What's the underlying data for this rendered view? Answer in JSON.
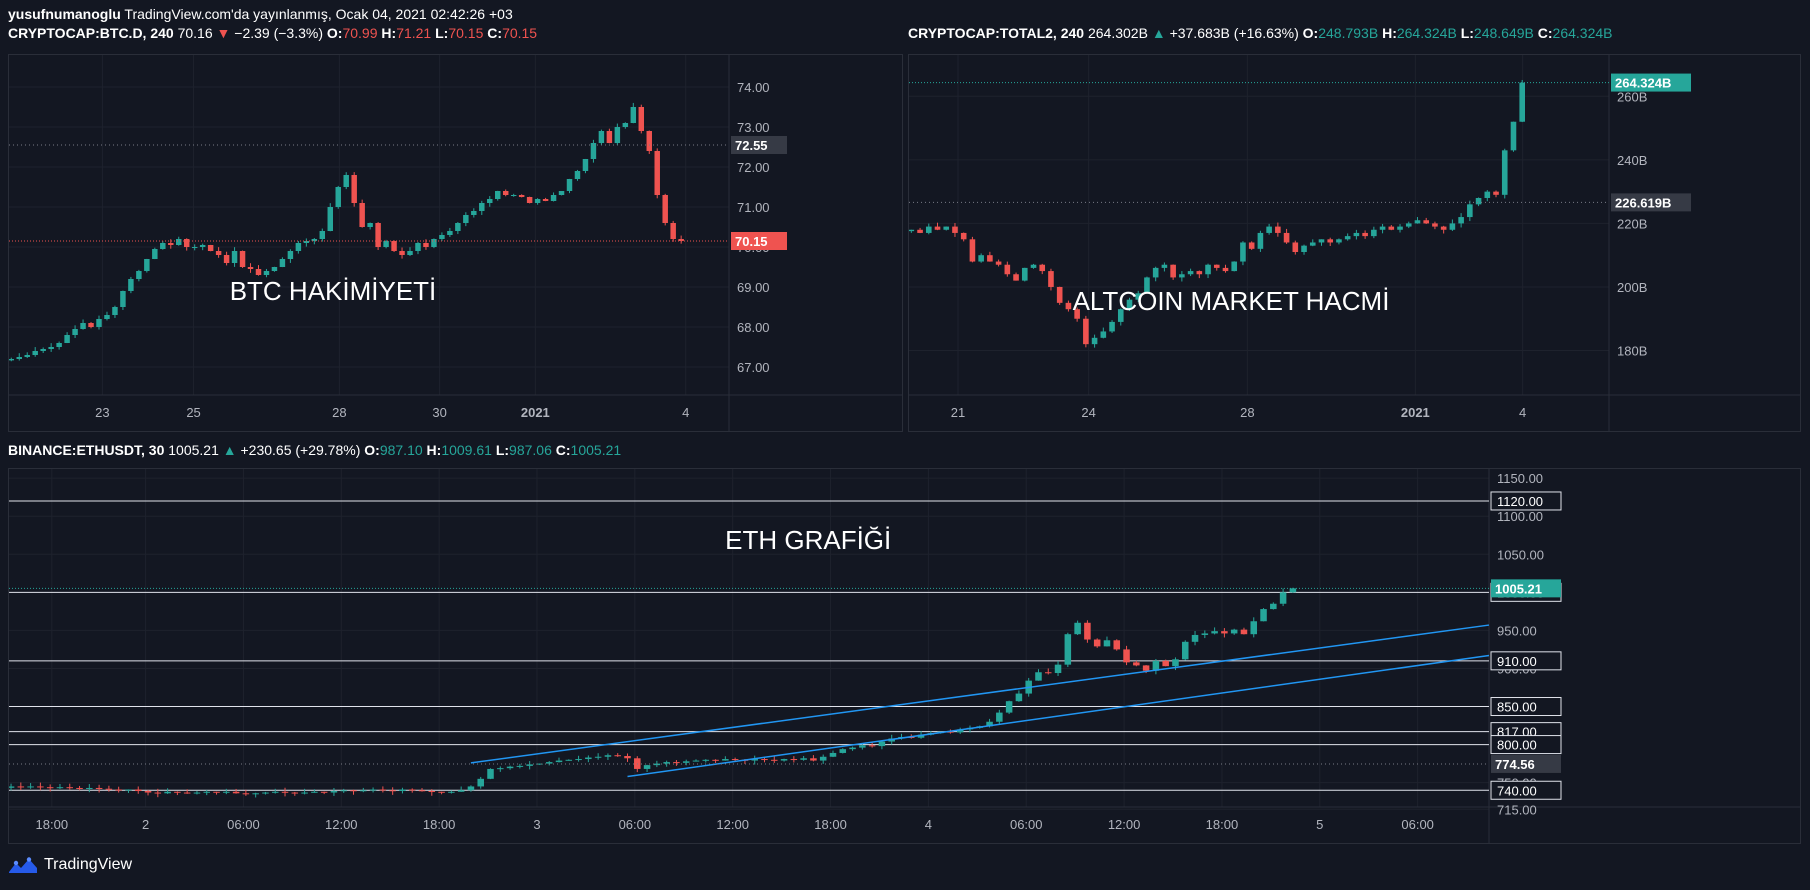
{
  "header": {
    "author": "yusufnumanoglu",
    "published": "TradingView.com'da yayınlanmış, Ocak 04, 2021 02:42:26 +03"
  },
  "colors": {
    "up": "#26a69a",
    "down": "#ef5350",
    "bg": "#131722",
    "grid": "#1e222d",
    "trend": "#2196f3"
  },
  "watermark": {
    "label": "TradingView",
    "icon": "tradingview-logo-icon"
  },
  "btc_legend": {
    "symbol": "CRYPTOCAP:BTC.D, 240",
    "last": "70.16",
    "arrow": "▼",
    "change": "−2.39 (−3.3%)",
    "o_label": "O:",
    "o": "70.99",
    "h_label": "H:",
    "h": "71.21",
    "l_label": "L:",
    "l": "70.15",
    "c_label": "C:",
    "c": "70.15"
  },
  "total_legend": {
    "symbol": "CRYPTOCAP:TOTAL2, 240",
    "last": "264.302B",
    "arrow": "▲",
    "change": "+37.683B (+16.63%)",
    "o_label": "O:",
    "o": "248.793B",
    "h_label": "H:",
    "h": "264.324B",
    "l_label": "L:",
    "l": "248.649B",
    "c_label": "C:",
    "c": "264.324B"
  },
  "eth_legend": {
    "symbol": "BINANCE:ETHUSDT, 30",
    "last": "1005.21",
    "arrow": "▲",
    "change": "+230.65 (+29.78%)",
    "o_label": "O:",
    "o": "987.10",
    "h_label": "H:",
    "h": "1009.61",
    "l_label": "L:",
    "l": "987.06",
    "c_label": "C:",
    "c": "1005.21"
  },
  "chart_data": [
    {
      "type": "candlestick",
      "annotation": "BTC HAKİMİYETİ",
      "ylim": [
        66.3,
        74.8
      ],
      "y_ticks": [
        "67.00",
        "68.00",
        "69.00",
        "70.00",
        "71.00",
        "72.00",
        "73.00",
        "74.00"
      ],
      "x_ticks": [
        {
          "i": 20,
          "label": "23"
        },
        {
          "i": 40,
          "label": "25"
        },
        {
          "i": 72,
          "label": "28"
        },
        {
          "i": 94,
          "label": "30"
        },
        {
          "i": 115,
          "label": "2021"
        },
        {
          "i": 148,
          "label": "4"
        }
      ],
      "n_slots": 158,
      "closes": [
        67.2,
        67.25,
        67.3,
        67.4,
        67.45,
        67.5,
        67.6,
        67.8,
        67.95,
        68.1,
        68.0,
        68.2,
        68.3,
        68.5,
        68.9,
        69.2,
        69.4,
        69.7,
        69.95,
        70.1,
        70.05,
        70.2,
        70.0,
        70.0,
        70.05,
        69.9,
        69.8,
        69.6,
        69.9,
        69.5,
        69.45,
        69.3,
        69.4,
        69.5,
        69.7,
        69.9,
        70.1,
        70.15,
        70.2,
        70.4,
        71.0,
        71.5,
        71.8,
        71.1,
        70.5,
        70.6,
        70.0,
        70.15,
        69.9,
        69.8,
        69.9,
        70.1,
        70.0,
        70.2,
        70.3,
        70.4,
        70.6,
        70.8,
        70.9,
        71.1,
        71.2,
        71.4,
        71.3,
        71.3,
        71.25,
        71.1,
        71.2,
        71.15,
        71.3,
        71.4,
        71.7,
        71.9,
        72.2,
        72.6,
        72.9,
        72.6,
        73.0,
        73.1,
        73.5,
        72.9,
        72.4,
        71.3,
        70.6,
        70.2,
        70.15
      ],
      "last_value": "70.15",
      "marker_value": "72.55"
    },
    {
      "type": "candlestick",
      "annotation": "ALTCOIN MARKET HACMİ",
      "ylim": [
        166,
        273
      ],
      "y_ticks": [
        "180B",
        "200B",
        "220B",
        "240B",
        "260B"
      ],
      "x_ticks": [
        {
          "i": 10,
          "label": "21"
        },
        {
          "i": 38,
          "label": "24"
        },
        {
          "i": 72,
          "label": "28"
        },
        {
          "i": 108,
          "label": "2021"
        },
        {
          "i": 131,
          "label": "4"
        }
      ],
      "n_slots": 150,
      "closes": [
        218,
        217,
        219,
        218,
        219,
        217,
        215,
        208,
        210,
        208,
        207,
        204,
        202,
        206,
        207,
        205,
        200,
        195,
        193,
        190,
        182,
        184,
        186,
        189,
        193,
        196,
        198,
        203,
        206,
        207,
        203,
        204,
        205,
        204,
        207,
        206,
        205,
        208,
        214,
        212,
        217,
        219,
        217,
        214,
        211,
        213,
        214,
        215,
        214,
        215,
        216,
        217,
        216,
        218,
        219,
        218,
        219,
        220,
        221,
        220,
        219,
        218,
        220,
        222,
        226,
        228,
        230,
        229,
        243,
        252,
        264.3
      ],
      "last_value": "264.324B",
      "marker_value": "226.619B"
    },
    {
      "type": "candlestick",
      "annotation": "ETH GRAFİĞİ",
      "ylim": [
        718,
        1162
      ],
      "y_ticks": [
        "1150.00",
        "1100.00",
        "1050.00",
        "950.00",
        "900.00",
        "850.00",
        "800.00",
        "750.00",
        "715.00"
      ],
      "x_ticks": [
        {
          "i": 10,
          "label": "18:00"
        },
        {
          "i": 33,
          "label": "2"
        },
        {
          "i": 57,
          "label": "06:00"
        },
        {
          "i": 81,
          "label": "12:00"
        },
        {
          "i": 105,
          "label": "18:00"
        },
        {
          "i": 129,
          "label": "3"
        },
        {
          "i": 153,
          "label": "06:00"
        },
        {
          "i": 177,
          "label": "12:00"
        },
        {
          "i": 201,
          "label": "18:00"
        },
        {
          "i": 225,
          "label": "4"
        },
        {
          "i": 249,
          "label": "06:00"
        },
        {
          "i": 273,
          "label": "12:00"
        },
        {
          "i": 297,
          "label": "18:00"
        },
        {
          "i": 321,
          "label": "5"
        },
        {
          "i": 345,
          "label": "06:00"
        }
      ],
      "n_slots": 363,
      "closes": [
        745,
        744,
        745,
        744,
        743,
        744,
        743,
        742,
        743,
        742,
        741,
        740,
        741,
        739,
        737,
        736,
        738,
        737,
        736,
        737,
        738,
        737,
        738,
        736,
        735,
        736,
        737,
        738,
        737,
        736,
        737,
        738,
        737,
        739,
        740,
        739,
        740,
        741,
        740,
        739,
        741,
        740,
        739,
        738,
        737,
        738,
        740,
        745,
        755,
        768,
        769,
        771,
        772,
        774,
        775,
        777,
        779,
        780,
        781,
        783,
        784,
        786,
        785,
        782,
        768,
        773,
        775,
        777,
        776,
        778,
        779,
        780,
        779,
        781,
        780,
        779,
        781,
        780,
        779,
        781,
        780,
        782,
        779,
        784,
        789,
        794,
        796,
        799,
        798,
        804,
        808,
        810,
        809,
        813,
        815,
        817,
        816,
        820,
        822,
        824,
        830,
        842,
        857,
        867,
        884,
        895,
        894,
        905,
        945,
        960,
        938,
        929,
        937,
        925,
        908,
        904,
        897,
        910,
        903,
        912,
        935,
        944,
        946,
        949,
        946,
        951,
        945,
        962,
        978,
        985,
        1000,
        1005.21
      ],
      "horizontal_levels": [
        "1120.00",
        "1000.00",
        "910.00",
        "850.00",
        "817.00",
        "800.00",
        "740.00"
      ],
      "last_value": "1005.21",
      "marker_value": "774.56"
    }
  ]
}
